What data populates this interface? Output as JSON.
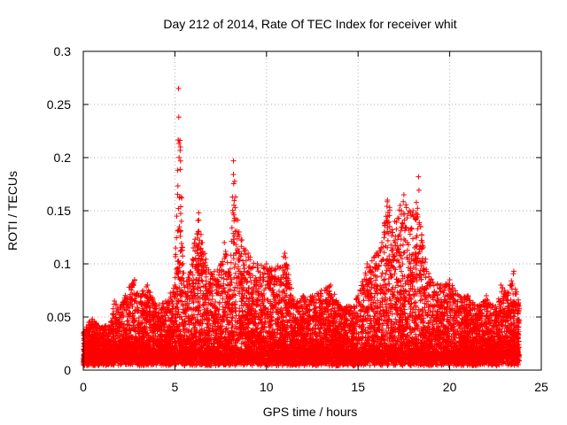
{
  "chart_data": {
    "type": "scatter",
    "title": "Day 212 of 2014, Rate Of TEC Index for receiver whit",
    "xlabel": "GPS time / hours",
    "ylabel": "ROTI / TECUs",
    "xlim": [
      0,
      25
    ],
    "ylim": [
      0,
      0.3
    ],
    "x_ticks": [
      "0",
      "5",
      "10",
      "15",
      "20",
      "25"
    ],
    "y_ticks": [
      "0",
      "0.05",
      "0.1",
      "0.15",
      "0.2",
      "0.25",
      "0.3"
    ],
    "grid": true,
    "marker": "+",
    "color": "#ff0000",
    "envelope": {
      "x": [
        0.0,
        0.3,
        0.5,
        1.0,
        1.5,
        1.7,
        2.0,
        2.5,
        2.8,
        3.0,
        3.5,
        4.0,
        4.5,
        5.0,
        5.2,
        5.3,
        5.5,
        5.8,
        6.0,
        6.3,
        6.5,
        7.0,
        7.5,
        7.7,
        8.0,
        8.2,
        8.5,
        9.0,
        9.5,
        10.0,
        10.5,
        11.0,
        11.5,
        12.0,
        12.5,
        13.0,
        13.5,
        14.0,
        14.5,
        15.0,
        15.5,
        16.0,
        16.3,
        16.6,
        17.0,
        17.3,
        17.5,
        17.8,
        18.0,
        18.3,
        18.5,
        19.0,
        19.5,
        20.0,
        20.5,
        21.0,
        21.5,
        22.0,
        22.5,
        22.8,
        23.0,
        23.3,
        23.5,
        23.8
      ],
      "y": [
        0.035,
        0.045,
        0.048,
        0.04,
        0.045,
        0.065,
        0.06,
        0.078,
        0.085,
        0.07,
        0.08,
        0.06,
        0.065,
        0.08,
        0.265,
        0.21,
        0.08,
        0.09,
        0.115,
        0.148,
        0.12,
        0.09,
        0.1,
        0.12,
        0.09,
        0.197,
        0.13,
        0.11,
        0.1,
        0.1,
        0.095,
        0.11,
        0.065,
        0.07,
        0.07,
        0.075,
        0.08,
        0.06,
        0.06,
        0.07,
        0.1,
        0.11,
        0.12,
        0.16,
        0.14,
        0.155,
        0.165,
        0.15,
        0.15,
        0.182,
        0.12,
        0.085,
        0.08,
        0.085,
        0.07,
        0.07,
        0.06,
        0.07,
        0.06,
        0.08,
        0.075,
        0.08,
        0.093,
        0.06
      ]
    },
    "x_range_of_data": [
      0.0,
      23.8
    ],
    "density_points_per_hour": 500
  }
}
